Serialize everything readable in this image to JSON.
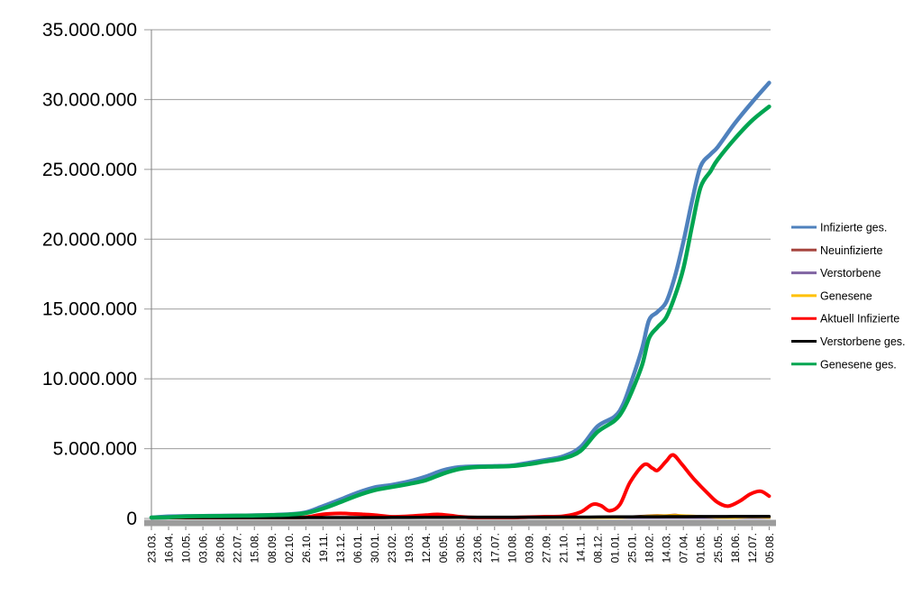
{
  "chart": {
    "background": "#FFFFFF",
    "grid_color": "#9B9B9B",
    "axis_color": "#808080",
    "axis_shadow_color": "#9C9C9C",
    "tick_color": "#808080"
  },
  "chart_data": {
    "type": "line",
    "title": "",
    "xlabel": "",
    "ylabel": "",
    "grid": true,
    "legend_position": "right",
    "ylim": [
      0,
      35000000
    ],
    "y_ticks": [
      {
        "value": 0,
        "label": "0"
      },
      {
        "value": 5000000,
        "label": "5.000.000"
      },
      {
        "value": 10000000,
        "label": "10.000.000"
      },
      {
        "value": 15000000,
        "label": "15.000.000"
      },
      {
        "value": 20000000,
        "label": "20.000.000"
      },
      {
        "value": 25000000,
        "label": "25.000.000"
      },
      {
        "value": 30000000,
        "label": "30.000.000"
      },
      {
        "value": 35000000,
        "label": "35.000.000"
      }
    ],
    "x_tick_labels": [
      "23.03.",
      "16.04.",
      "10.05.",
      "03.06.",
      "28.06.",
      "22.07.",
      "15.08.",
      "08.09.",
      "02.10.",
      "26.10.",
      "19.11.",
      "13.12.",
      "06.01.",
      "30.01.",
      "23.02.",
      "19.03.",
      "12.04.",
      "06.05.",
      "30.05.",
      "23.06.",
      "17.07.",
      "10.08.",
      "03.09.",
      "27.09.",
      "21.10.",
      "14.11.",
      "08.12.",
      "01.01.",
      "25.01.",
      "18.02.",
      "14.03.",
      "07.04.",
      "01.05.",
      "25.05.",
      "18.06.",
      "12.07.",
      "05.08."
    ],
    "x_note": "daily category axis; tick labels every 24 days, 23.03.2020 through 05.08.2022; point x-coordinates below are in tick-index units (0 = 23.03., 36 = 05.08.)",
    "series": [
      {
        "name": "Infizierte ges.",
        "color": "#4F81BD",
        "width": 4.5,
        "points": [
          [
            0,
            30000
          ],
          [
            1,
            140000
          ],
          [
            2,
            170000
          ],
          [
            3,
            183000
          ],
          [
            4,
            194000
          ],
          [
            5,
            204000
          ],
          [
            6,
            224000
          ],
          [
            7,
            252000
          ],
          [
            8,
            300000
          ],
          [
            9,
            440000
          ],
          [
            10,
            880000
          ],
          [
            11,
            1350000
          ],
          [
            12,
            1840000
          ],
          [
            13,
            2220000
          ],
          [
            14,
            2400000
          ],
          [
            15,
            2650000
          ],
          [
            16,
            3000000
          ],
          [
            17,
            3450000
          ],
          [
            18,
            3680000
          ],
          [
            19,
            3730000
          ],
          [
            20,
            3750000
          ],
          [
            21,
            3800000
          ],
          [
            22,
            3990000
          ],
          [
            23,
            4200000
          ],
          [
            24,
            4450000
          ],
          [
            25,
            5100000
          ],
          [
            26,
            6600000
          ],
          [
            27,
            7300000
          ],
          [
            27.5,
            8200000
          ],
          [
            28,
            9900000
          ],
          [
            28.6,
            12200000
          ],
          [
            29,
            14200000
          ],
          [
            29.5,
            14800000
          ],
          [
            30,
            15500000
          ],
          [
            30.5,
            17300000
          ],
          [
            31,
            19800000
          ],
          [
            31.5,
            22700000
          ],
          [
            32,
            25200000
          ],
          [
            32.6,
            26100000
          ],
          [
            33,
            26600000
          ],
          [
            34,
            28300000
          ],
          [
            35,
            29800000
          ],
          [
            36,
            31200000
          ]
        ]
      },
      {
        "name": "Neuinfizierte",
        "color": "#A6453E",
        "width": 3,
        "points": [
          [
            0,
            4000
          ],
          [
            1,
            3000
          ],
          [
            2,
            1500
          ],
          [
            4,
            500
          ],
          [
            6,
            1000
          ],
          [
            7,
            1500
          ],
          [
            8,
            2500
          ],
          [
            9,
            10000
          ],
          [
            10,
            20000
          ],
          [
            11,
            26000
          ],
          [
            12,
            24000
          ],
          [
            13,
            14000
          ],
          [
            14,
            8000
          ],
          [
            15,
            14000
          ],
          [
            16,
            21000
          ],
          [
            17,
            20000
          ],
          [
            18,
            8000
          ],
          [
            19,
            2000
          ],
          [
            20,
            1000
          ],
          [
            21,
            3000
          ],
          [
            22,
            11000
          ],
          [
            23,
            9000
          ],
          [
            24,
            12000
          ],
          [
            25,
            40000
          ],
          [
            26,
            60000
          ],
          [
            27,
            45000
          ],
          [
            28,
            120000
          ],
          [
            29,
            195000
          ],
          [
            29.5,
            220000
          ],
          [
            30,
            200000
          ],
          [
            30.5,
            250000
          ],
          [
            31,
            180000
          ],
          [
            32,
            120000
          ],
          [
            33,
            60000
          ],
          [
            34,
            75000
          ],
          [
            35,
            120000
          ],
          [
            36,
            90000
          ]
        ]
      },
      {
        "name": "Verstorbene",
        "color": "#8064A2",
        "width": 3,
        "points": [
          [
            0,
            300
          ],
          [
            10,
            400
          ],
          [
            12,
            900
          ],
          [
            14,
            600
          ],
          [
            16,
            300
          ],
          [
            20,
            100
          ],
          [
            26,
            400
          ],
          [
            30,
            300
          ],
          [
            33,
            150
          ],
          [
            36,
            150
          ]
        ]
      },
      {
        "name": "Genesene",
        "color": "#FFC000",
        "width": 3,
        "points": [
          [
            0,
            2000
          ],
          [
            1,
            4000
          ],
          [
            2,
            3000
          ],
          [
            4,
            1000
          ],
          [
            6,
            1000
          ],
          [
            8,
            2000
          ],
          [
            9,
            6000
          ],
          [
            10,
            18000
          ],
          [
            11,
            25000
          ],
          [
            12,
            22000
          ],
          [
            13,
            15000
          ],
          [
            14,
            10000
          ],
          [
            15,
            12000
          ],
          [
            16,
            20000
          ],
          [
            17,
            22000
          ],
          [
            18,
            15000
          ],
          [
            19,
            8000
          ],
          [
            20,
            3000
          ],
          [
            21,
            4000
          ],
          [
            22,
            9000
          ],
          [
            23,
            8000
          ],
          [
            24,
            10000
          ],
          [
            25,
            30000
          ],
          [
            26,
            55000
          ],
          [
            27,
            40000
          ],
          [
            28,
            100000
          ],
          [
            29,
            180000
          ],
          [
            30,
            200000
          ],
          [
            30.5,
            220000
          ],
          [
            31,
            200000
          ],
          [
            32,
            150000
          ],
          [
            33,
            80000
          ],
          [
            34,
            60000
          ],
          [
            35,
            110000
          ],
          [
            36,
            80000
          ]
        ]
      },
      {
        "name": "Aktuell Infizierte",
        "color": "#FF0000",
        "width": 4,
        "points": [
          [
            0,
            25000
          ],
          [
            0.9,
            60000
          ],
          [
            1.5,
            40000
          ],
          [
            2,
            20000
          ],
          [
            3,
            12000
          ],
          [
            4,
            7000
          ],
          [
            5,
            6000
          ],
          [
            6,
            10000
          ],
          [
            7,
            16000
          ],
          [
            8,
            30000
          ],
          [
            9,
            90000
          ],
          [
            10,
            300000
          ],
          [
            11,
            360000
          ],
          [
            11.7,
            330000
          ],
          [
            12.3,
            300000
          ],
          [
            13,
            240000
          ],
          [
            14,
            120000
          ],
          [
            15,
            160000
          ],
          [
            16,
            240000
          ],
          [
            16.7,
            290000
          ],
          [
            17.5,
            200000
          ],
          [
            18,
            120000
          ],
          [
            19,
            45000
          ],
          [
            20,
            20000
          ],
          [
            21,
            45000
          ],
          [
            22,
            100000
          ],
          [
            23,
            130000
          ],
          [
            24,
            160000
          ],
          [
            25,
            450000
          ],
          [
            25.7,
            1000000
          ],
          [
            26.2,
            920000
          ],
          [
            26.7,
            550000
          ],
          [
            27.3,
            1000000
          ],
          [
            27.9,
            2600000
          ],
          [
            28.7,
            3850000
          ],
          [
            29.2,
            3600000
          ],
          [
            29.5,
            3450000
          ],
          [
            30,
            4100000
          ],
          [
            30.4,
            4550000
          ],
          [
            30.9,
            3900000
          ],
          [
            31.6,
            2850000
          ],
          [
            32.5,
            1700000
          ],
          [
            33,
            1150000
          ],
          [
            33.6,
            880000
          ],
          [
            34.3,
            1250000
          ],
          [
            34.9,
            1750000
          ],
          [
            35.5,
            1950000
          ],
          [
            36,
            1600000
          ]
        ]
      },
      {
        "name": "Verstorbene ges.",
        "color": "#000000",
        "width": 3.5,
        "points": [
          [
            0,
            1000
          ],
          [
            1,
            4000
          ],
          [
            2,
            7000
          ],
          [
            4,
            9000
          ],
          [
            6,
            9200
          ],
          [
            8,
            9500
          ],
          [
            9,
            10000
          ],
          [
            10,
            14000
          ],
          [
            11,
            22000
          ],
          [
            12,
            37000
          ],
          [
            13,
            56000
          ],
          [
            14,
            69000
          ],
          [
            15,
            74000
          ],
          [
            16,
            78000
          ],
          [
            17,
            84000
          ],
          [
            18,
            88000
          ],
          [
            19,
            90000
          ],
          [
            20,
            91000
          ],
          [
            21,
            92000
          ],
          [
            22,
            92500
          ],
          [
            23,
            93500
          ],
          [
            24,
            95000
          ],
          [
            25,
            98000
          ],
          [
            26,
            104000
          ],
          [
            27,
            112000
          ],
          [
            28,
            117000
          ],
          [
            29,
            121000
          ],
          [
            30,
            126000
          ],
          [
            31,
            131000
          ],
          [
            32,
            135000
          ],
          [
            33,
            138000
          ],
          [
            34,
            140000
          ],
          [
            35,
            142000
          ],
          [
            36,
            144000
          ]
        ]
      },
      {
        "name": "Genesene ges.",
        "color": "#00A551",
        "width": 4.5,
        "points": [
          [
            0,
            10000
          ],
          [
            1,
            80000
          ],
          [
            2,
            150000
          ],
          [
            3,
            170000
          ],
          [
            4,
            182000
          ],
          [
            5,
            194000
          ],
          [
            6,
            210000
          ],
          [
            7,
            238000
          ],
          [
            8,
            280000
          ],
          [
            9,
            390000
          ],
          [
            10,
            710000
          ],
          [
            11,
            1160000
          ],
          [
            12,
            1640000
          ],
          [
            13,
            2020000
          ],
          [
            14,
            2250000
          ],
          [
            15,
            2470000
          ],
          [
            16,
            2740000
          ],
          [
            17,
            3210000
          ],
          [
            18,
            3550000
          ],
          [
            19,
            3680000
          ],
          [
            20,
            3710000
          ],
          [
            21,
            3750000
          ],
          [
            22,
            3890000
          ],
          [
            23,
            4090000
          ],
          [
            24,
            4300000
          ],
          [
            25,
            4830000
          ],
          [
            26,
            6200000
          ],
          [
            27,
            7000000
          ],
          [
            27.5,
            7800000
          ],
          [
            28,
            9100000
          ],
          [
            28.6,
            11000000
          ],
          [
            29,
            12900000
          ],
          [
            29.5,
            13700000
          ],
          [
            30,
            14400000
          ],
          [
            30.5,
            15900000
          ],
          [
            31,
            17900000
          ],
          [
            31.5,
            20900000
          ],
          [
            32,
            23700000
          ],
          [
            32.6,
            24900000
          ],
          [
            33,
            25700000
          ],
          [
            34,
            27200000
          ],
          [
            35,
            28500000
          ],
          [
            36,
            29500000
          ]
        ]
      }
    ]
  },
  "legend": {
    "items": [
      {
        "label": "Infizierte ges.",
        "color": "#4F81BD"
      },
      {
        "label": "Neuinfizierte",
        "color": "#A6453E"
      },
      {
        "label": "Verstorbene",
        "color": "#8064A2"
      },
      {
        "label": "Genesene",
        "color": "#FFC000"
      },
      {
        "label": "Aktuell Infizierte",
        "color": "#FF0000"
      },
      {
        "label": "Verstorbene ges.",
        "color": "#000000"
      },
      {
        "label": "Genesene ges.",
        "color": "#00A551"
      }
    ]
  }
}
